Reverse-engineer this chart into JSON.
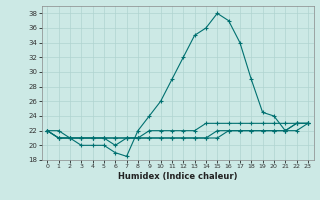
{
  "xlabel": "Humidex (Indice chaleur)",
  "xlim": [
    -0.5,
    23.5
  ],
  "ylim": [
    18,
    39
  ],
  "yticks": [
    18,
    20,
    22,
    24,
    26,
    28,
    30,
    32,
    34,
    36,
    38
  ],
  "xticks": [
    0,
    1,
    2,
    3,
    4,
    5,
    6,
    7,
    8,
    9,
    10,
    11,
    12,
    13,
    14,
    15,
    16,
    17,
    18,
    19,
    20,
    21,
    22,
    23
  ],
  "bg_color": "#cce9e5",
  "grid_color": "#b0d4d0",
  "line_color": "#007070",
  "lines": [
    [
      22,
      22,
      21,
      20,
      20,
      20,
      19,
      18.5,
      22,
      24,
      26,
      29,
      32,
      35,
      36,
      38,
      37,
      34,
      29,
      24.5,
      24,
      22,
      23,
      23
    ],
    [
      22,
      21,
      21,
      21,
      21,
      21,
      21,
      21,
      21,
      21,
      21,
      21,
      21,
      21,
      21,
      21,
      22,
      22,
      22,
      22,
      22,
      22,
      22,
      23
    ],
    [
      22,
      21,
      21,
      21,
      21,
      21,
      21,
      21,
      21,
      21,
      21,
      21,
      21,
      21,
      21,
      22,
      22,
      22,
      22,
      22,
      22,
      22,
      23,
      23
    ],
    [
      22,
      21,
      21,
      21,
      21,
      21,
      20,
      21,
      21,
      22,
      22,
      22,
      22,
      22,
      23,
      23,
      23,
      23,
      23,
      23,
      23,
      23,
      23,
      23
    ]
  ]
}
